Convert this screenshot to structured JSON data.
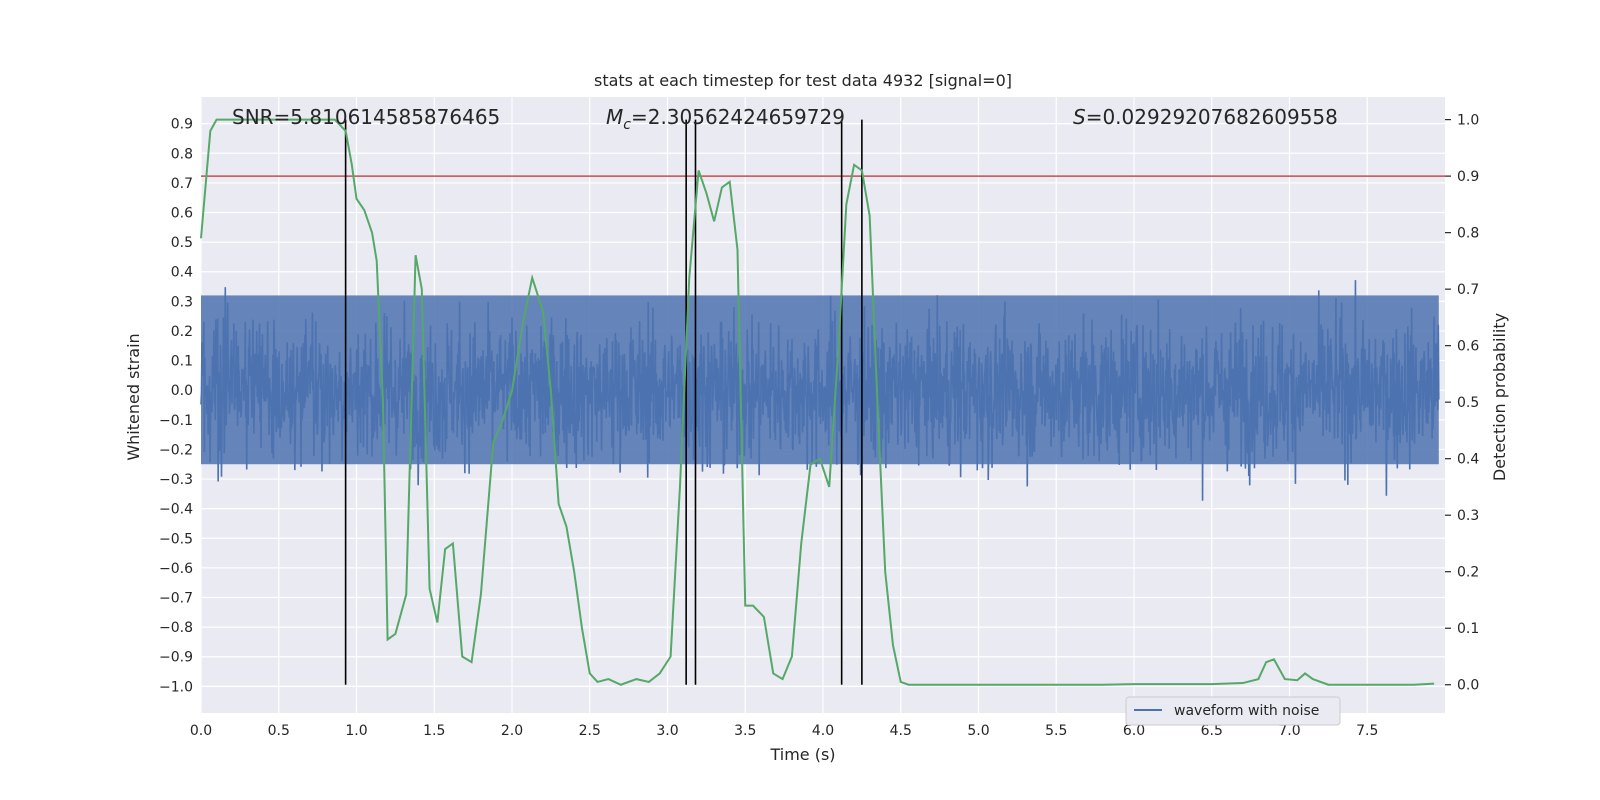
{
  "chart_data": {
    "type": "line",
    "title": "stats at each timestep for test data 4932 [signal=0]",
    "xlabel": "Time (s)",
    "ylabel_left": "Whitened strain",
    "ylabel_right": "Detection probability",
    "xlim": [
      0.0,
      8.0
    ],
    "ylim_left": [
      -1.09,
      0.99
    ],
    "ylim_right": [
      -0.05,
      1.04
    ],
    "x_ticks": [
      0.0,
      0.5,
      1.0,
      1.5,
      2.0,
      2.5,
      3.0,
      3.5,
      4.0,
      4.5,
      5.0,
      5.5,
      6.0,
      6.5,
      7.0,
      7.5
    ],
    "x_tick_labels": [
      "0.0",
      "0.5",
      "1.0",
      "1.5",
      "2.0",
      "2.5",
      "3.0",
      "3.5",
      "4.0",
      "4.5",
      "5.0",
      "5.5",
      "6.0",
      "6.5",
      "7.0",
      "7.5"
    ],
    "y_left_ticks": [
      0.9,
      0.8,
      0.7,
      0.6,
      0.5,
      0.4,
      0.3,
      0.2,
      0.1,
      0.0,
      -0.1,
      -0.2,
      -0.3,
      -0.4,
      -0.5,
      -0.6,
      -0.7,
      -0.8,
      -0.9,
      -1.0
    ],
    "y_left_tick_labels": [
      "0.9",
      "0.8",
      "0.7",
      "0.6",
      "0.5",
      "0.4",
      "0.3",
      "0.2",
      "0.1",
      "0.0",
      "−0.1",
      "−0.2",
      "−0.3",
      "−0.4",
      "−0.5",
      "−0.6",
      "−0.7",
      "−0.8",
      "−0.9",
      "−1.0"
    ],
    "y_right_ticks": [
      1.0,
      0.9,
      0.8,
      0.7,
      0.6,
      0.5,
      0.4,
      0.3,
      0.2,
      0.1,
      0.0
    ],
    "y_right_tick_labels": [
      "1.0",
      "0.9",
      "0.8",
      "0.7",
      "0.6",
      "0.5",
      "0.4",
      "0.3",
      "0.2",
      "0.1",
      "0.0"
    ],
    "annotations": {
      "snr": "SNR=5.810614585876465",
      "mc_symbol": "M",
      "mc_sub": "c",
      "mc_value": "=2.30562424659729",
      "s_symbol": "S",
      "s_value": "=0.02929207682609558"
    },
    "threshold": {
      "value": 0.9,
      "axis": "right",
      "color": "#c44e52"
    },
    "vertical_lines": [
      0.93,
      3.12,
      3.18,
      4.12,
      4.25
    ],
    "series": [
      {
        "name": "waveform with noise",
        "axis": "left",
        "color": "#4c72b0",
        "kind": "noisy_waveform",
        "noise_band": [
          -0.3,
          0.4
        ],
        "max_abs": 1.0
      },
      {
        "axis": "right",
        "color": "#55a868",
        "x": [
          0.0,
          0.06,
          0.1,
          0.2,
          0.4,
          0.6,
          0.86,
          0.93,
          0.97,
          1.0,
          1.05,
          1.1,
          1.13,
          1.17,
          1.2,
          1.25,
          1.32,
          1.38,
          1.42,
          1.47,
          1.52,
          1.57,
          1.62,
          1.68,
          1.74,
          1.8,
          1.88,
          1.93,
          2.0,
          2.07,
          2.13,
          2.2,
          2.25,
          2.3,
          2.35,
          2.4,
          2.45,
          2.5,
          2.55,
          2.62,
          2.7,
          2.8,
          2.88,
          2.95,
          3.02,
          3.08,
          3.14,
          3.2,
          3.25,
          3.3,
          3.35,
          3.4,
          3.45,
          3.5,
          3.55,
          3.62,
          3.68,
          3.74,
          3.8,
          3.86,
          3.92,
          3.98,
          4.04,
          4.1,
          4.15,
          4.2,
          4.25,
          4.3,
          4.35,
          4.4,
          4.45,
          4.5,
          4.55,
          4.6,
          5.0,
          5.5,
          5.8,
          6.0,
          6.5,
          6.7,
          6.8,
          6.85,
          6.9,
          6.93,
          6.97,
          7.05,
          7.1,
          7.15,
          7.25,
          7.5,
          7.8,
          7.93
        ],
        "y": [
          0.79,
          0.98,
          1.0,
          1.0,
          1.0,
          1.0,
          1.0,
          0.98,
          0.92,
          0.86,
          0.84,
          0.8,
          0.75,
          0.5,
          0.08,
          0.09,
          0.16,
          0.76,
          0.7,
          0.17,
          0.11,
          0.24,
          0.25,
          0.05,
          0.04,
          0.16,
          0.43,
          0.46,
          0.52,
          0.64,
          0.72,
          0.66,
          0.52,
          0.32,
          0.28,
          0.2,
          0.1,
          0.02,
          0.005,
          0.01,
          0.0,
          0.01,
          0.005,
          0.02,
          0.05,
          0.35,
          0.72,
          0.91,
          0.87,
          0.82,
          0.88,
          0.89,
          0.77,
          0.14,
          0.14,
          0.12,
          0.02,
          0.01,
          0.05,
          0.25,
          0.39,
          0.4,
          0.35,
          0.6,
          0.85,
          0.92,
          0.91,
          0.83,
          0.5,
          0.2,
          0.07,
          0.005,
          0.0,
          0.0,
          0.0,
          0.0,
          0.0,
          0.001,
          0.001,
          0.003,
          0.01,
          0.04,
          0.045,
          0.03,
          0.01,
          0.008,
          0.02,
          0.01,
          0.0,
          0.0,
          0.0,
          0.002
        ]
      }
    ],
    "legend": {
      "position": "bottom-right",
      "entries": [
        "waveform with noise"
      ]
    },
    "grid": true,
    "colors": {
      "background": "#eaeaf2",
      "grid": "#ffffff",
      "vline": "#000000"
    }
  }
}
